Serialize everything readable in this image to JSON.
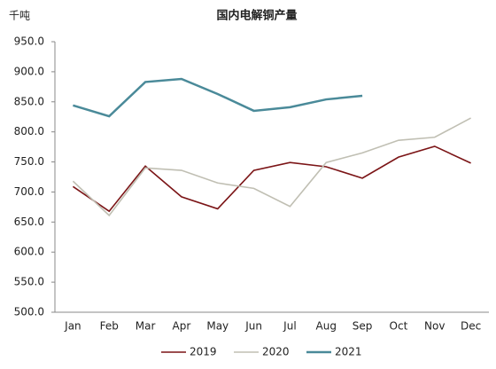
{
  "chart_data": {
    "type": "line",
    "title": "国内电解铜产量",
    "ylabel": "千吨",
    "categories": [
      "Jan",
      "Feb",
      "Mar",
      "Apr",
      "May",
      "Jun",
      "Jul",
      "Aug",
      "Sep",
      "Oct",
      "Nov",
      "Dec"
    ],
    "series": [
      {
        "name": "2019",
        "color": "#7b1416",
        "values": [
          709,
          668,
          743,
          692,
          672,
          736,
          749,
          742,
          723,
          758,
          776,
          748
        ]
      },
      {
        "name": "2020",
        "color": "#c0bfb3",
        "values": [
          718,
          661,
          740,
          736,
          715,
          706,
          676,
          749,
          765,
          786,
          791,
          823
        ]
      },
      {
        "name": "2021",
        "color": "#4a8a99",
        "values": [
          844,
          826,
          883,
          888,
          863,
          835,
          841,
          854,
          860,
          null,
          null,
          null
        ]
      }
    ],
    "ylim": [
      500,
      950
    ],
    "yticks": [
      {
        "value": 500,
        "label": "500.0"
      },
      {
        "value": 550,
        "label": "550.0"
      },
      {
        "value": 600,
        "label": "600.0"
      },
      {
        "value": 650,
        "label": "650.0"
      },
      {
        "value": 700,
        "label": "700.0"
      },
      {
        "value": 750,
        "label": "750.0"
      },
      {
        "value": 800,
        "label": "800.0"
      },
      {
        "value": 850,
        "label": "850.0"
      },
      {
        "value": 900,
        "label": "900.0"
      },
      {
        "value": 950,
        "label": "950.0"
      }
    ],
    "grid": false,
    "legend": "bottom"
  }
}
